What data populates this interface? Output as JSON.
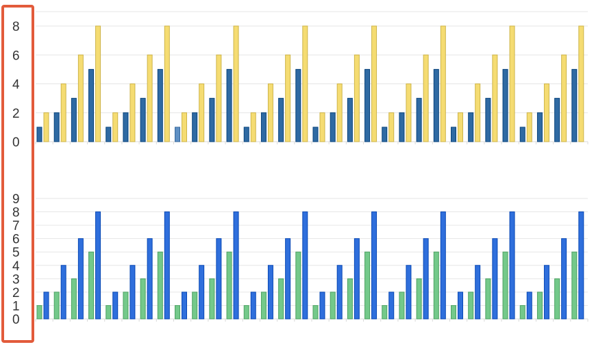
{
  "selection_highlight_color": "#e25b3b",
  "chart_data": [
    {
      "type": "bar",
      "title": "",
      "xlabel": "",
      "ylabel": "",
      "ylim": [
        0,
        8
      ],
      "yticks": [
        "0",
        "2",
        "4",
        "6",
        "8"
      ],
      "grid": true,
      "legend": "none",
      "group_count": 32,
      "series": [
        {
          "color": "#2f6aa3",
          "highlight_color": "#5f90c4",
          "highlighted_index": 8,
          "values": [
            1,
            2,
            3,
            5,
            1,
            2,
            3,
            5,
            1,
            2,
            3,
            5,
            1,
            2,
            3,
            5,
            1,
            2,
            3,
            5,
            1,
            2,
            3,
            5,
            1,
            2,
            3,
            5,
            1,
            2,
            3,
            5
          ]
        },
        {
          "color": "#f5dc72",
          "highlight_color": "#f5dc72",
          "highlighted_index": -1,
          "values": [
            2,
            4,
            6,
            8,
            2,
            4,
            6,
            8,
            2,
            4,
            6,
            8,
            2,
            4,
            6,
            8,
            2,
            4,
            6,
            8,
            2,
            4,
            6,
            8,
            2,
            4,
            6,
            8,
            2,
            4,
            6,
            8
          ]
        }
      ]
    },
    {
      "type": "bar",
      "title": "",
      "xlabel": "",
      "ylabel": "",
      "ylim": [
        0,
        9
      ],
      "yticks": [
        "0",
        "1",
        "2",
        "3",
        "4",
        "5",
        "6",
        "7",
        "8",
        "9"
      ],
      "grid": true,
      "legend": "none",
      "group_count": 32,
      "series": [
        {
          "color": "#74c98a",
          "highlight_color": "#74c98a",
          "highlighted_index": -1,
          "values": [
            1,
            2,
            3,
            5,
            1,
            2,
            3,
            5,
            1,
            2,
            3,
            5,
            1,
            2,
            3,
            5,
            1,
            2,
            3,
            5,
            1,
            2,
            3,
            5,
            1,
            2,
            3,
            5,
            1,
            2,
            3,
            5
          ]
        },
        {
          "color": "#2f6fdc",
          "highlight_color": "#2f6fdc",
          "highlighted_index": -1,
          "values": [
            2,
            4,
            6,
            8,
            2,
            4,
            6,
            8,
            2,
            4,
            6,
            8,
            2,
            4,
            6,
            8,
            2,
            4,
            6,
            8,
            2,
            4,
            6,
            8,
            2,
            4,
            6,
            8,
            2,
            4,
            6,
            8
          ]
        }
      ]
    }
  ]
}
